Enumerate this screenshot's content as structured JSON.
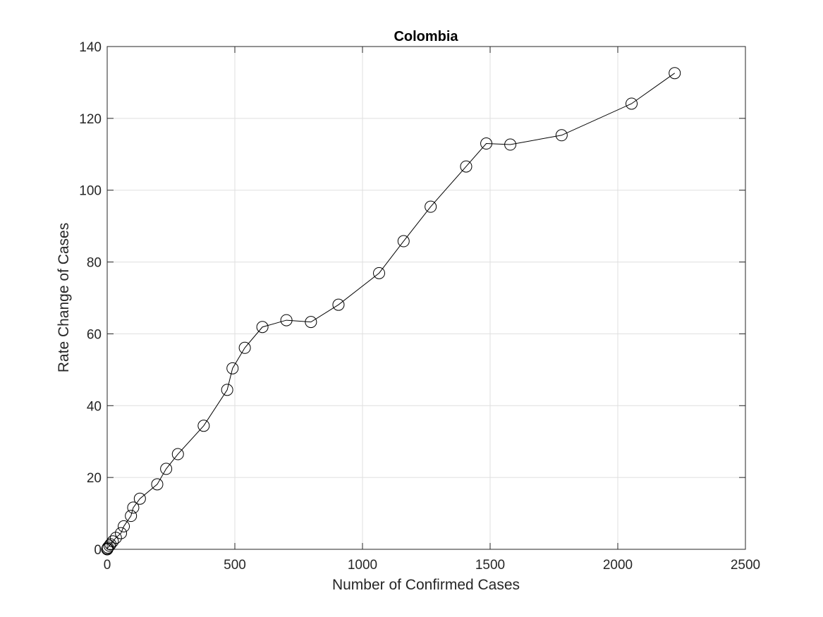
{
  "chart_data": {
    "type": "line",
    "title": "Colombia",
    "xlabel": "Number of Confirmed Cases",
    "ylabel": "Rate Change of Cases",
    "xlim": [
      0,
      2500
    ],
    "ylim": [
      0,
      140
    ],
    "xticks": [
      0,
      500,
      1000,
      1500,
      2000,
      2500
    ],
    "yticks": [
      0,
      20,
      40,
      60,
      80,
      100,
      120,
      140
    ],
    "grid": true,
    "marker": "open-circle",
    "colors": {
      "line": "#000000",
      "marker": "#000000",
      "grid": "#dfdfdf",
      "axis": "#262626",
      "background": "#ffffff"
    },
    "series": [
      {
        "x": [
          0,
          1,
          3,
          9,
          13,
          22,
          34,
          54,
          65,
          93,
          102,
          128,
          196,
          231,
          277,
          378,
          470,
          491,
          539,
          608,
          702,
          798,
          906,
          1065,
          1161,
          1267,
          1406,
          1485,
          1579,
          1780,
          2054,
          2223
        ],
        "y": [
          0,
          0.2,
          0.5,
          1.0,
          1.4,
          2.2,
          3.2,
          4.5,
          6.4,
          9.3,
          11.6,
          14.1,
          18.1,
          22.4,
          26.5,
          34.4,
          44.4,
          50.4,
          56.1,
          61.9,
          63.8,
          63.3,
          68.1,
          76.9,
          85.8,
          95.4,
          106.6,
          113.0,
          112.7,
          115.3,
          124.1,
          132.6
        ]
      }
    ]
  }
}
